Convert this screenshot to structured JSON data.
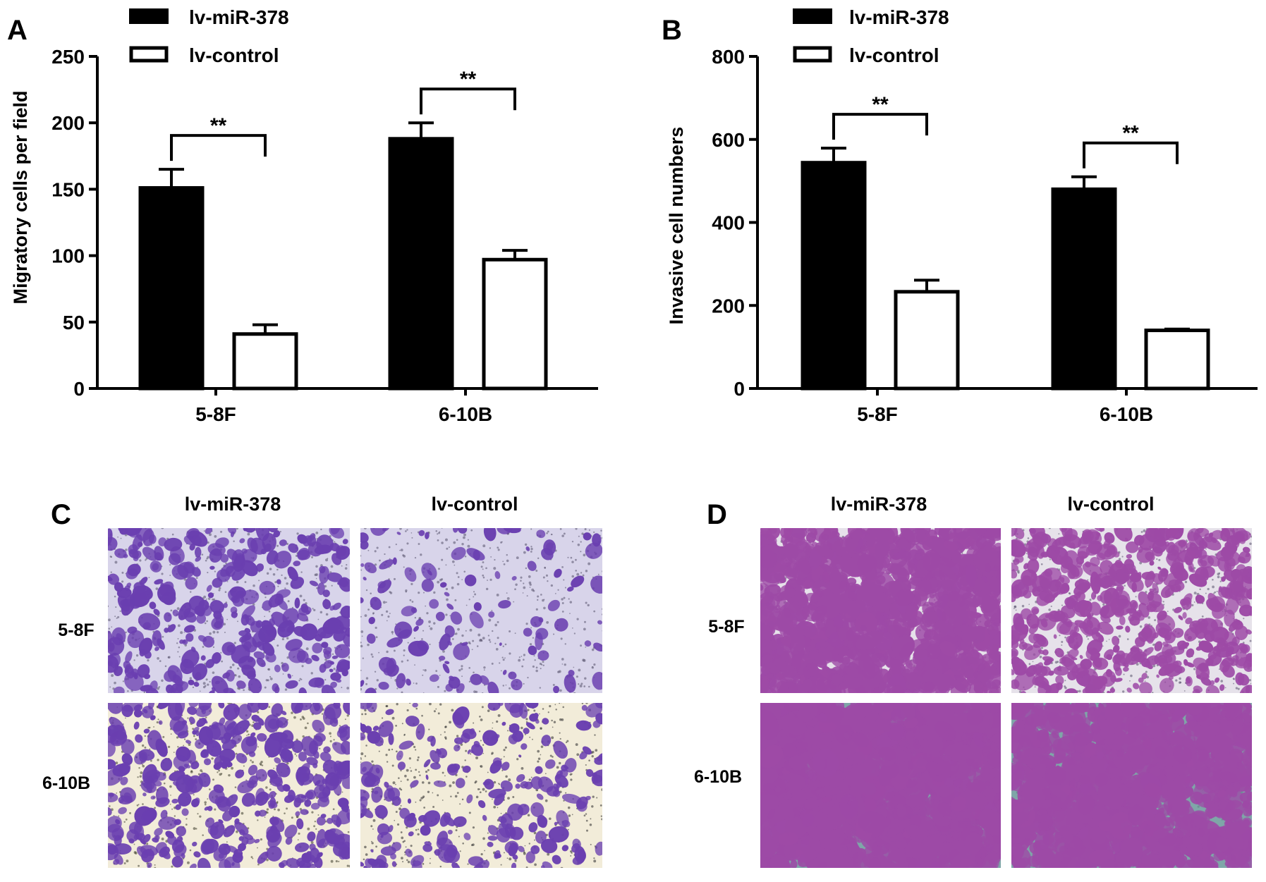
{
  "colors": {
    "miR": "#000000",
    "control": "#ffffff",
    "stain_purple": "#6a3fb0",
    "bg_lavender": "#d8d4ea",
    "bg_cream": "#f2ecd9",
    "stain_magenta": "#9d4aa6",
    "bg_teal": "#7fa6a8"
  },
  "chart_data": [
    {
      "panel": "A",
      "type": "bar",
      "categories": [
        "5-8F",
        "6-10B"
      ],
      "series": [
        {
          "name": "lv-miR-378",
          "values": [
            151,
            188
          ],
          "errors": [
            14,
            12
          ]
        },
        {
          "name": "lv-control",
          "values": [
            41,
            97
          ],
          "errors": [
            7,
            7
          ]
        }
      ],
      "ylabel": "Migratory cells per field",
      "ylim": [
        0,
        250
      ],
      "yticks": [
        "0",
        "50",
        "100",
        "150",
        "200",
        "250"
      ],
      "significance": [
        "**",
        "**"
      ],
      "legend_position": "top-left"
    },
    {
      "panel": "B",
      "type": "bar",
      "categories": [
        "5-8F",
        "6-10B"
      ],
      "series": [
        {
          "name": "lv-miR-378",
          "values": [
            544,
            480
          ],
          "errors": [
            35,
            30
          ]
        },
        {
          "name": "lv-control",
          "values": [
            233,
            140
          ],
          "errors": [
            28,
            3
          ]
        }
      ],
      "ylabel": "Invasive cell numbers",
      "ylim": [
        0,
        800
      ],
      "yticks": [
        "0",
        "200",
        "400",
        "600",
        "800"
      ],
      "significance": [
        "**",
        "**"
      ],
      "legend_position": "top-left"
    }
  ],
  "micrographs": [
    {
      "panel": "C",
      "col_labels": [
        "lv-miR-378",
        "lv-control"
      ],
      "row_labels": [
        "5-8F",
        "6-10B"
      ],
      "description_styles": [
        "sparse-lavender",
        "sparse-cream"
      ]
    },
    {
      "panel": "D",
      "col_labels": [
        "lv-miR-378",
        "lv-control"
      ],
      "row_labels": [
        "5-8F",
        "6-10B"
      ],
      "description_styles": [
        "dense-purple",
        "dense-teal"
      ]
    }
  ]
}
